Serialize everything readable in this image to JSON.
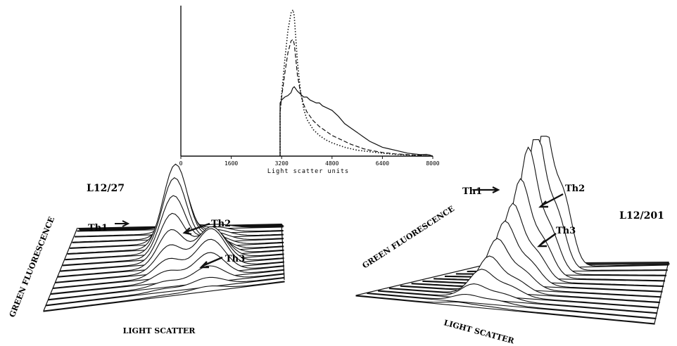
{
  "chart_data": [
    {
      "type": "line",
      "xlabel": "Light scatter units",
      "ylabel": "",
      "xlim": [
        0,
        8000
      ],
      "ylim": [
        0,
        1.0
      ],
      "x_ticks": [
        "0",
        "1600",
        "3200",
        "4800",
        "6400",
        "8000"
      ],
      "grid": false,
      "series": [
        {
          "style": "solid",
          "x": [
            3150,
            3150,
            3200,
            3300,
            3400,
            3500,
            3550,
            3600,
            3700,
            3800,
            3900,
            4000,
            4100,
            4200,
            4300,
            4400,
            4500,
            4600,
            4700,
            4800,
            5000,
            5200,
            5400,
            5600,
            5800,
            6000,
            6200,
            6400,
            6600,
            6800,
            7000,
            7200,
            7400,
            7600,
            7800,
            7900,
            8000
          ],
          "values": [
            0.0,
            0.36,
            0.38,
            0.4,
            0.41,
            0.43,
            0.46,
            0.47,
            0.44,
            0.42,
            0.4,
            0.4,
            0.38,
            0.37,
            0.36,
            0.36,
            0.34,
            0.33,
            0.32,
            0.31,
            0.27,
            0.22,
            0.19,
            0.16,
            0.13,
            0.1,
            0.08,
            0.06,
            0.05,
            0.04,
            0.03,
            0.02,
            0.015,
            0.01,
            0.012,
            0.008,
            0.0
          ]
        },
        {
          "style": "dashed",
          "x": [
            3150,
            3150,
            3200,
            3300,
            3400,
            3500,
            3560,
            3600,
            3650,
            3700,
            3800,
            3900,
            4000,
            4200,
            4400,
            4600,
            4800,
            5000,
            5200,
            5400,
            5600,
            5800,
            6000,
            6400,
            6800,
            7200,
            7600,
            8000
          ],
          "values": [
            0.0,
            0.3,
            0.4,
            0.56,
            0.7,
            0.78,
            0.79,
            0.76,
            0.66,
            0.55,
            0.43,
            0.35,
            0.3,
            0.24,
            0.2,
            0.17,
            0.14,
            0.12,
            0.1,
            0.08,
            0.065,
            0.05,
            0.04,
            0.025,
            0.015,
            0.01,
            0.005,
            0.0
          ]
        },
        {
          "style": "dotted",
          "x": [
            3150,
            3150,
            3200,
            3300,
            3400,
            3500,
            3560,
            3600,
            3650,
            3700,
            3800,
            3900,
            4000,
            4200,
            4400,
            4600,
            4800,
            5000,
            5200,
            5400,
            5600,
            6000,
            6400,
            6800,
            7200,
            7600,
            8000
          ],
          "values": [
            0.0,
            0.3,
            0.42,
            0.65,
            0.85,
            0.97,
            0.99,
            0.95,
            0.8,
            0.64,
            0.44,
            0.32,
            0.25,
            0.18,
            0.14,
            0.11,
            0.09,
            0.075,
            0.06,
            0.05,
            0.04,
            0.03,
            0.02,
            0.012,
            0.008,
            0.004,
            0.0
          ]
        }
      ]
    },
    {
      "type": "area",
      "projection": "3d-ridgeline",
      "sample_label": "L12/27",
      "xlabel": "LIGHT SCATTER",
      "ylabel": "GREEN FLUORESCENCE",
      "annotations": [
        "Th1",
        "Th2",
        "Th3"
      ],
      "ridges_back_to_front": [
        {
          "peak_1": 0.1,
          "peak_2": 0.04
        },
        {
          "peak_1": 0.3,
          "peak_2": 0.06
        },
        {
          "peak_1": 0.55,
          "peak_2": 0.08
        },
        {
          "peak_1": 0.8,
          "peak_2": 0.1
        },
        {
          "peak_1": 0.95,
          "peak_2": 0.12
        },
        {
          "peak_1": 0.85,
          "peak_2": 0.16
        },
        {
          "peak_1": 0.7,
          "peak_2": 0.25
        },
        {
          "peak_1": 0.55,
          "peak_2": 0.35
        },
        {
          "peak_1": 0.42,
          "peak_2": 0.42
        },
        {
          "peak_1": 0.3,
          "peak_2": 0.45
        },
        {
          "peak_1": 0.2,
          "peak_2": 0.38
        },
        {
          "peak_1": 0.12,
          "peak_2": 0.28
        },
        {
          "peak_1": 0.06,
          "peak_2": 0.18
        },
        {
          "peak_1": 0.03,
          "peak_2": 0.1
        },
        {
          "peak_1": 0.01,
          "peak_2": 0.05
        }
      ]
    },
    {
      "type": "area",
      "projection": "3d-ridgeline",
      "sample_label": "L12/201",
      "xlabel": "LIGHT SCATTER",
      "ylabel": "GREEN FLUORESCENCE",
      "annotations": [
        "Th1",
        "Th2",
        "Th3"
      ],
      "ridges_back_to_front": [
        {
          "peak_1": 1.0,
          "peak_2": 0.55
        },
        {
          "peak_1": 1.0,
          "peak_2": 0.45
        },
        {
          "peak_1": 0.9,
          "peak_2": 0.35
        },
        {
          "peak_1": 0.7,
          "peak_2": 0.28
        },
        {
          "peak_1": 0.55,
          "peak_2": 0.22
        },
        {
          "peak_1": 0.45,
          "peak_2": 0.18
        },
        {
          "peak_1": 0.35,
          "peak_2": 0.14
        },
        {
          "peak_1": 0.25,
          "peak_2": 0.1
        },
        {
          "peak_1": 0.18,
          "peak_2": 0.08
        },
        {
          "peak_1": 0.1,
          "peak_2": 0.05
        },
        {
          "peak_1": 0.05,
          "peak_2": 0.03
        },
        {
          "peak_1": 0.02,
          "peak_2": 0.01
        }
      ]
    }
  ]
}
